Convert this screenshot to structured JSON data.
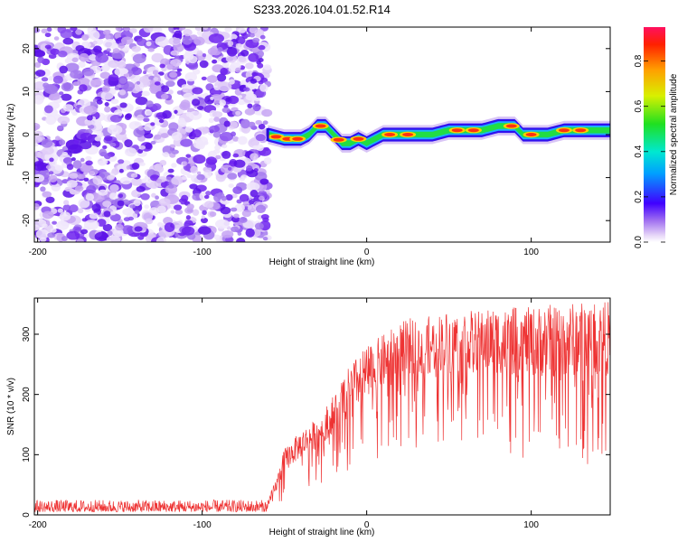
{
  "title": "S233.2026.104.01.52.R14",
  "chart_data": [
    {
      "type": "heatmap",
      "name": "spectrogram",
      "xlabel": "Height of straight line (km)",
      "ylabel": "Frequency (Hz)",
      "xlim": [
        -202,
        148
      ],
      "ylim": [
        -25,
        25
      ],
      "x_ticks": [
        -200,
        -100,
        0,
        100
      ],
      "y_ticks": [
        -20,
        -10,
        0,
        10,
        20
      ],
      "x_tick_labels": [
        "-200",
        "-100",
        "0",
        "100"
      ],
      "y_tick_labels": [
        "-20",
        "-10",
        "0",
        "10",
        "20"
      ],
      "noise_region_x": [
        -202,
        -60
      ],
      "noise_color": "#7b2ff7",
      "signal_track": {
        "x": [
          -60,
          -50,
          -40,
          -35,
          -30,
          -25,
          -20,
          -15,
          -10,
          -5,
          0,
          5,
          10,
          15,
          20,
          30,
          40,
          50,
          60,
          70,
          80,
          85,
          90,
          95,
          100,
          110,
          120,
          130,
          140,
          148
        ],
        "frequency_hz": [
          0,
          -1,
          -1,
          0,
          2,
          2,
          0,
          -2,
          -2,
          -1,
          -2,
          -1,
          0,
          0,
          0,
          0,
          0,
          1,
          1,
          1,
          2,
          2,
          2,
          0,
          0,
          0,
          1,
          1,
          1,
          1
        ]
      },
      "colorbar": {
        "label": "Normalized spectral amplitude",
        "range": [
          0.0,
          0.95
        ],
        "ticks": [
          0.0,
          0.2,
          0.4,
          0.6,
          0.8
        ],
        "tick_labels": [
          "0.0",
          "0.2",
          "0.4",
          "0.6",
          "0.8"
        ]
      }
    },
    {
      "type": "line",
      "name": "snr",
      "xlabel": "Height of straight line (km)",
      "ylabel": "SNR (10 * v/v)",
      "xlim": [
        -202,
        148
      ],
      "ylim": [
        0,
        360
      ],
      "x_ticks": [
        -200,
        -100,
        0,
        100
      ],
      "y_ticks": [
        0,
        100,
        200,
        300
      ],
      "x_tick_labels": [
        "-200",
        "-100",
        "0",
        "100"
      ],
      "y_tick_labels": [
        "0",
        "100",
        "200",
        "300"
      ],
      "line_color": "#ee3333",
      "envelope": {
        "x": [
          -202,
          -60,
          -55,
          -50,
          -40,
          -30,
          -20,
          -10,
          0,
          10,
          20,
          30,
          40,
          50,
          60,
          70,
          80,
          90,
          100,
          110,
          120,
          130,
          140,
          148
        ],
        "upper": [
          25,
          25,
          60,
          110,
          140,
          160,
          200,
          250,
          280,
          300,
          320,
          330,
          330,
          340,
          340,
          340,
          345,
          345,
          345,
          350,
          350,
          355,
          355,
          355
        ],
        "lower": [
          5,
          5,
          10,
          25,
          40,
          50,
          60,
          70,
          80,
          100,
          110,
          110,
          120,
          120,
          120,
          110,
          100,
          90,
          90,
          80,
          80,
          80,
          80,
          80
        ]
      }
    }
  ]
}
